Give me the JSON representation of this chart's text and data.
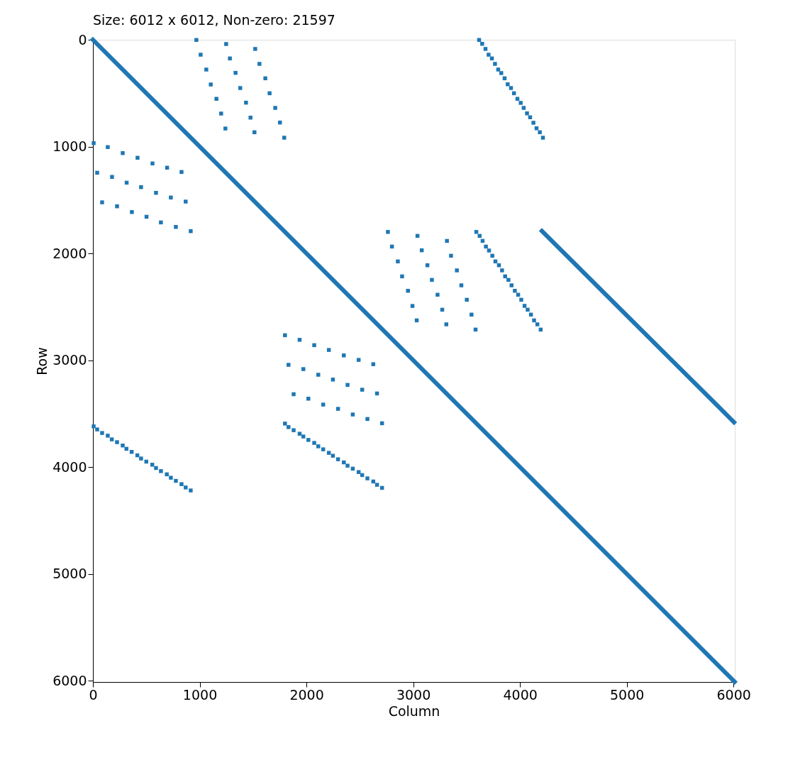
{
  "chart_data": {
    "type": "scatter",
    "title": "Size: 6012 x 6012, Non-zero: 21597",
    "xlabel": "Column",
    "ylabel": "Row",
    "xlim": [
      0,
      6012
    ],
    "ylim": [
      6012,
      0
    ],
    "xticks": [
      0,
      1000,
      2000,
      3000,
      4000,
      5000,
      6000
    ],
    "yticks": [
      0,
      1000,
      2000,
      3000,
      4000,
      5000,
      6000
    ],
    "grid": false,
    "series": [
      {
        "type": "line",
        "color": "#1f77b4",
        "x": [
          0,
          6011
        ],
        "values": [
          0,
          6011
        ]
      },
      {
        "type": "line",
        "color": "#1f77b4",
        "x": [
          4205,
          6005
        ],
        "values": [
          1790,
          3580
        ]
      },
      {
        "color": "#1f77b4",
        "marker": "square",
        "x": [
          969,
          1009,
          1062,
          1104,
          1157,
          1201,
          1241,
          1248,
          1283,
          1336,
          1380,
          1434,
          1476,
          1513,
          1520,
          1560,
          1615,
          1655,
          1708,
          1752,
          1792,
          3617,
          3646,
          3677,
          3706,
          3737,
          3766,
          3796,
          3825,
          3856,
          3885,
          3916,
          3944,
          3976,
          4007,
          4035,
          4066,
          4095,
          4126,
          4155,
          4186,
          4215,
          7,
          139,
          279,
          418,
          558,
          695,
          830,
          40,
          179,
          316,
          451,
          591,
          730,
          869,
          86,
          226,
          365,
          502,
          637,
          777,
          916,
          2763,
          2801,
          2856,
          2896,
          2951,
          2993,
          3033,
          3040,
          3080,
          3133,
          3175,
          3228,
          3272,
          3310,
          3316,
          3354,
          3409,
          3451,
          3502,
          3546,
          3584,
          3591,
          3622,
          3650,
          3681,
          3710,
          3741,
          3770,
          3803,
          3832,
          3861,
          3892,
          3921,
          3952,
          3983,
          4012,
          4043,
          4072,
          4103,
          4132,
          4163,
          4194,
          1799,
          1936,
          2073,
          2210,
          2350,
          2489,
          2626,
          1832,
          1971,
          2111,
          2248,
          2385,
          2522,
          2661,
          1880,
          2018,
          2157,
          2296,
          2434,
          2571,
          2708,
          1799,
          1832,
          1880,
          1936,
          1971,
          2018,
          2073,
          2111,
          2157,
          2210,
          2248,
          2296,
          2350,
          2385,
          2434,
          2489,
          2522,
          2571,
          2626,
          2661,
          2708,
          7,
          40,
          86,
          139,
          177,
          226,
          279,
          314,
          363,
          416,
          451,
          500,
          556,
          591,
          637,
          692,
          730,
          777,
          830,
          869,
          916
        ],
        "values": [
          2,
          140,
          279,
          419,
          553,
          691,
          831,
          40,
          175,
          310,
          452,
          589,
          729,
          866,
          86,
          226,
          361,
          501,
          638,
          775,
          917,
          2,
          38,
          86,
          140,
          175,
          226,
          279,
          312,
          361,
          417,
          452,
          501,
          553,
          591,
          638,
          689,
          726,
          777,
          829,
          866,
          917,
          968,
          1005,
          1061,
          1105,
          1158,
          1198,
          1238,
          1245,
          1284,
          1338,
          1380,
          1433,
          1477,
          1515,
          1522,
          1559,
          1613,
          1657,
          1710,
          1752,
          1792,
          1799,
          1936,
          2075,
          2215,
          2350,
          2492,
          2627,
          1836,
          1971,
          2111,
          2248,
          2387,
          2527,
          2664,
          1883,
          2022,
          2159,
          2299,
          2434,
          2573,
          2713,
          1799,
          1836,
          1883,
          1936,
          1973,
          2022,
          2075,
          2111,
          2159,
          2215,
          2248,
          2299,
          2350,
          2387,
          2434,
          2491,
          2527,
          2573,
          2627,
          2664,
          2713,
          2766,
          2809,
          2859,
          2904,
          2955,
          2997,
          3037,
          3043,
          3083,
          3136,
          3181,
          3231,
          3276,
          3311,
          3318,
          3360,
          3415,
          3455,
          3508,
          3550,
          3590,
          3593,
          3626,
          3655,
          3688,
          3714,
          3746,
          3774,
          3806,
          3834,
          3867,
          3894,
          3927,
          3956,
          3987,
          4015,
          4047,
          4075,
          4106,
          4135,
          4166,
          4195,
          3619,
          3648,
          3681,
          3706,
          3741,
          3767,
          3798,
          3829,
          3858,
          3890,
          3920,
          3949,
          3978,
          4009,
          4038,
          4068,
          4100,
          4129,
          4160,
          4191,
          4219
        ]
      }
    ]
  }
}
